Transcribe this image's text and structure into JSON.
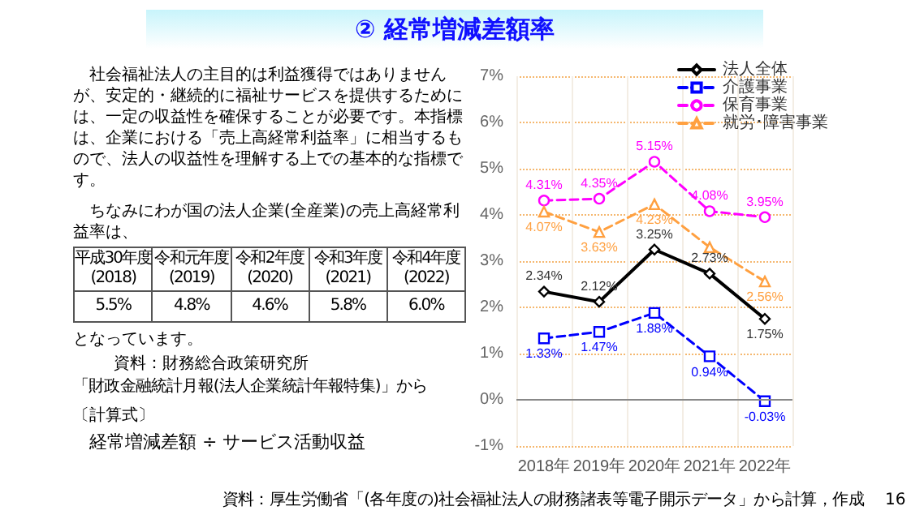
{
  "chart_data": {
    "type": "line",
    "title": "② 経常増減差額率",
    "categories": [
      "2018年",
      "2019年",
      "2020年",
      "2021年",
      "2022年"
    ],
    "series": [
      {
        "name": "法人全体",
        "color": "#000000",
        "marker": "diamond",
        "line_style": "solid",
        "values": [
          2.34,
          2.12,
          3.25,
          2.73,
          1.75
        ],
        "value_labels": [
          "2.34%",
          "2.12%",
          "3.25%",
          "2.73%",
          "1.75%"
        ]
      },
      {
        "name": "介護事業",
        "color": "#0000ff",
        "marker": "square",
        "line_style": "dashed",
        "values": [
          1.33,
          1.47,
          1.88,
          0.94,
          -0.03
        ],
        "value_labels": [
          "1.33%",
          "1.47%",
          "1.88%",
          "0.94%",
          "-0.03%"
        ]
      },
      {
        "name": "保育事業",
        "color": "#ff00ff",
        "marker": "circle",
        "line_style": "dashed",
        "values": [
          4.31,
          4.35,
          5.15,
          4.08,
          3.95
        ],
        "value_labels": [
          "4.31%",
          "4.35%",
          "5.15%",
          "4.08%",
          "3.95%"
        ]
      },
      {
        "name": "就労･障害事業",
        "color": "#ffa040",
        "marker": "triangle",
        "line_style": "dashed",
        "values": [
          4.07,
          3.63,
          4.23,
          3.3,
          2.56
        ],
        "value_labels": [
          "4.07%",
          "3.63%",
          "4.23%",
          null,
          "2.56%"
        ]
      }
    ],
    "ylim": [
      -1,
      7
    ],
    "yticks": [
      {
        "value": -1,
        "label": "-1%"
      },
      {
        "value": 0,
        "label": "0%"
      },
      {
        "value": 1,
        "label": "1%"
      },
      {
        "value": 2,
        "label": "2%"
      },
      {
        "value": 3,
        "label": "3%"
      },
      {
        "value": 4,
        "label": "4%"
      },
      {
        "value": 5,
        "label": "5%"
      },
      {
        "value": 6,
        "label": "6%"
      },
      {
        "value": 7,
        "label": "7%"
      }
    ],
    "grid": true,
    "legend": "top right",
    "ref_lines": [
      {
        "axis": "y",
        "value": 0,
        "color": "#888888",
        "line_style": "solid"
      }
    ],
    "annotations": [
      "社会福祉法人の主目的は利益獲得ではありませんが、安定的・継続的に福祉サービスを提供するためには、一定の収益性を確保することが必要です。本指標は、企業における「売上高経常利益率」に相当するもので、法人の収益性を理解する上での基本的な指標です。",
      "ちなみにわが国の法人企業(全産業)の売上高経常利益率は、",
      "平成30年度 (2018)",
      "令和元年度 (2019)",
      "令和2年度 (2020)",
      "令和3年度 (2021)",
      "令和4年度 (2022)",
      "5.5%",
      "4.8%",
      "4.6%",
      "5.8%",
      "6.0%",
      "となっています。",
      "資料：財務総合政策研究所",
      "「財政金融統計月報(法人企業統計年報特集)」から",
      "〔計算式〕",
      "経常増減差額 ÷ サービス活動収益",
      "資料：厚生労働省「(各年度の)社会福祉法人の財務諸表等電子開示データ」から計算，作成",
      "16"
    ]
  }
}
